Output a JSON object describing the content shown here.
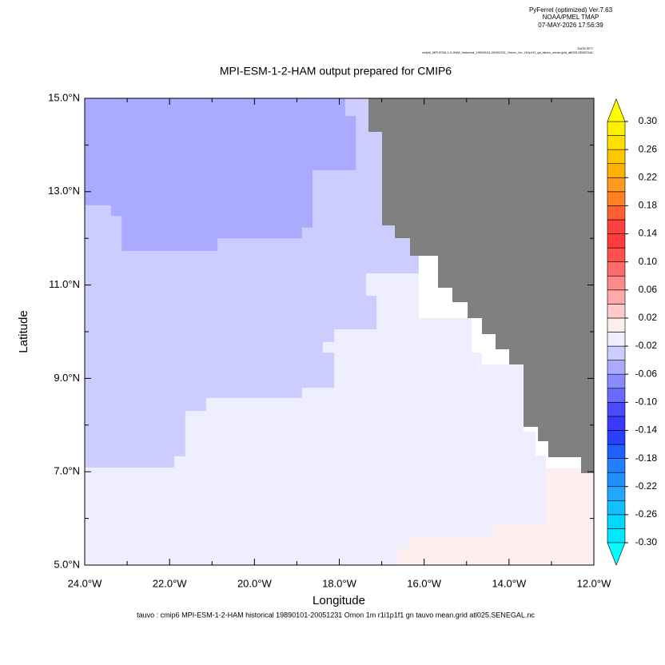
{
  "header": {
    "program": "PyFerret (optimized) Ver.7.63",
    "org": "NOAA/PMEL TMAP",
    "date": "07-MAY-2026 17:56:39",
    "dataset_label": "DATA SET:",
    "dataset": "cmip6_MPI-ESM-1-2-HAM_historical_19890101-20051231_Omon_1m_r1i1p1f1_gn_tauvo_mean.grid_atl025.SENEGAL"
  },
  "chart_data": {
    "type": "map",
    "title": "MPI-ESM-1-2-HAM output prepared for CMIP6",
    "xlabel": "Longitude",
    "ylabel": "Latitude",
    "footer": "tauvo : cmip6 MPI-ESM-1-2-HAM historical 19890101-20051231 Omon 1m r1i1p1f1 gn tauvo mean.grid atl025.SENEGAL.nc",
    "xlim": [
      -24,
      -12
    ],
    "ylim": [
      5,
      15
    ],
    "xticks": [
      {
        "value": -24,
        "label": "24.0°W"
      },
      {
        "value": -22,
        "label": "22.0°W"
      },
      {
        "value": -20,
        "label": "20.0°W"
      },
      {
        "value": -18,
        "label": "18.0°W"
      },
      {
        "value": -16,
        "label": "16.0°W"
      },
      {
        "value": -14,
        "label": "14.0°W"
      },
      {
        "value": -12,
        "label": "12.0°W"
      }
    ],
    "yticks": [
      {
        "value": 5,
        "label": "5.0°N"
      },
      {
        "value": 7,
        "label": "7.0°N"
      },
      {
        "value": 9,
        "label": "9.0°N"
      },
      {
        "value": 11,
        "label": "11.0°N"
      },
      {
        "value": 13,
        "label": "13.0°N"
      },
      {
        "value": 15,
        "label": "15.0°N"
      }
    ],
    "xminorticks": [
      -23,
      -21,
      -19,
      -17,
      -15,
      -13
    ],
    "yminorticks": [
      6,
      8,
      10,
      12,
      14
    ],
    "regions": [
      {
        "value": -0.01,
        "polygon": [
          [
            -24,
            5
          ],
          [
            -12,
            5
          ],
          [
            -12,
            15
          ],
          [
            -24,
            15
          ]
        ]
      },
      {
        "value": -0.03,
        "polygon": [
          [
            -24,
            15
          ],
          [
            -17.31,
            15
          ],
          [
            -17.31,
            14.28
          ],
          [
            -16.99,
            14.28
          ],
          [
            -16.99,
            12.28
          ],
          [
            -16.69,
            12.28
          ],
          [
            -16.69,
            12
          ],
          [
            -16.33,
            12
          ],
          [
            -16.33,
            11.63
          ],
          [
            -16.13,
            11.63
          ],
          [
            -16.13,
            11.25
          ],
          [
            -17.37,
            11.25
          ],
          [
            -17.37,
            10.77
          ],
          [
            -17.12,
            10.77
          ],
          [
            -17.12,
            10.05
          ],
          [
            -18.12,
            10.05
          ],
          [
            -18.12,
            9.78
          ],
          [
            -18.39,
            9.78
          ],
          [
            -18.39,
            9.55
          ],
          [
            -18.12,
            9.55
          ],
          [
            -18.12,
            8.8
          ],
          [
            -18.88,
            8.8
          ],
          [
            -18.88,
            8.58
          ],
          [
            -21.14,
            8.58
          ],
          [
            -21.14,
            8.3
          ],
          [
            -21.63,
            8.3
          ],
          [
            -21.63,
            7.33
          ],
          [
            -21.89,
            7.33
          ],
          [
            -21.89,
            7.09
          ],
          [
            -24,
            7.09
          ]
        ]
      },
      {
        "value": -0.05,
        "polygon": [
          [
            -24,
            15
          ],
          [
            -17.86,
            15
          ],
          [
            -17.86,
            14.62
          ],
          [
            -17.61,
            14.62
          ],
          [
            -17.61,
            13.46
          ],
          [
            -18.63,
            13.46
          ],
          [
            -18.63,
            12.23
          ],
          [
            -18.88,
            12.23
          ],
          [
            -18.88,
            12
          ],
          [
            -20.87,
            12
          ],
          [
            -20.87,
            11.73
          ],
          [
            -23.13,
            11.73
          ],
          [
            -23.13,
            12.48
          ],
          [
            -23.38,
            12.48
          ],
          [
            -23.38,
            12.71
          ],
          [
            -24,
            12.71
          ]
        ]
      },
      {
        "value": 0.01,
        "polygon": [
          [
            -13.13,
            7.07
          ],
          [
            -12.3,
            7.07
          ],
          [
            -12.3,
            6.97
          ],
          [
            -12,
            6.97
          ],
          [
            -12,
            5
          ],
          [
            -16.62,
            5
          ],
          [
            -16.62,
            5.36
          ],
          [
            -16.37,
            5.36
          ],
          [
            -16.37,
            5.62
          ],
          [
            -14.37,
            5.62
          ],
          [
            -14.37,
            5.86
          ],
          [
            -13.13,
            5.86
          ]
        ]
      }
    ],
    "colorbar": {
      "levels": [
        -0.3,
        -0.28,
        -0.26,
        -0.24,
        -0.22,
        -0.2,
        -0.18,
        -0.16,
        -0.14,
        -0.12,
        -0.1,
        -0.08,
        -0.06,
        -0.04,
        -0.02,
        0,
        0.02,
        0.04,
        0.06,
        0.08,
        0.1,
        0.12,
        0.14,
        0.16,
        0.18,
        0.2,
        0.22,
        0.24,
        0.26,
        0.28,
        0.3
      ],
      "colors": [
        "#00e8ff",
        "#00d8ff",
        "#10c0ff",
        "#20a8ff",
        "#2090ff",
        "#2080ff",
        "#2060ff",
        "#2a40ff",
        "#3a3aff",
        "#4a4aff",
        "#6a6aff",
        "#8a8aff",
        "#aaaaff",
        "#ccccff",
        "#eeeeff",
        "#ffeeee",
        "#ffcaca",
        "#ffaaaa",
        "#ff8a8a",
        "#ff6a6a",
        "#ff5050",
        "#ff3a3a",
        "#ff4040",
        "#ff6030",
        "#ff8020",
        "#ff9a20",
        "#ffb000",
        "#ffc800",
        "#ffe000",
        "#fff000"
      ],
      "under_color": "#00ffff",
      "over_color": "#ffff00",
      "ticks": [
        {
          "value": 0.3,
          "label": "0.30"
        },
        0.26,
        0.22,
        0.18,
        0.14,
        {
          "value": 0.1,
          "label": "0.10"
        },
        0.06,
        0.02,
        -0.02,
        -0.06,
        {
          "value": -0.1,
          "label": "-0.10"
        },
        -0.14,
        -0.18,
        -0.22,
        -0.26,
        {
          "value": -0.3,
          "label": "-0.30"
        }
      ]
    },
    "land_color": "#808080"
  }
}
